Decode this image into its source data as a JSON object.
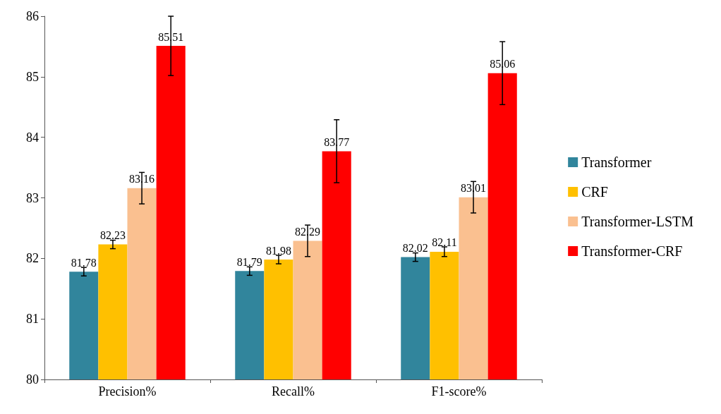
{
  "chart_data": {
    "type": "bar",
    "categories": [
      "Precision%",
      "Recall%",
      "F1-score%"
    ],
    "series": [
      {
        "name": "Transformer",
        "color": "#31859c",
        "values": [
          81.78,
          81.79,
          82.02
        ],
        "errors": [
          0.07,
          0.07,
          0.07
        ]
      },
      {
        "name": "CRF",
        "color": "#ffc000",
        "values": [
          82.23,
          81.98,
          82.11
        ],
        "errors": [
          0.07,
          0.07,
          0.08
        ]
      },
      {
        "name": "Transformer-LSTM",
        "color": "#fac090",
        "values": [
          83.16,
          82.29,
          83.01
        ],
        "errors": [
          0.26,
          0.26,
          0.26
        ]
      },
      {
        "name": "Transformer-CRF",
        "color": "#ff0000",
        "values": [
          85.51,
          83.77,
          85.06
        ],
        "errors": [
          0.49,
          0.52,
          0.52
        ]
      }
    ],
    "ylim": [
      80,
      86
    ],
    "yticks": [
      80,
      81,
      82,
      83,
      84,
      85,
      86
    ],
    "grid": false,
    "legend": "right",
    "data_labels": true
  }
}
